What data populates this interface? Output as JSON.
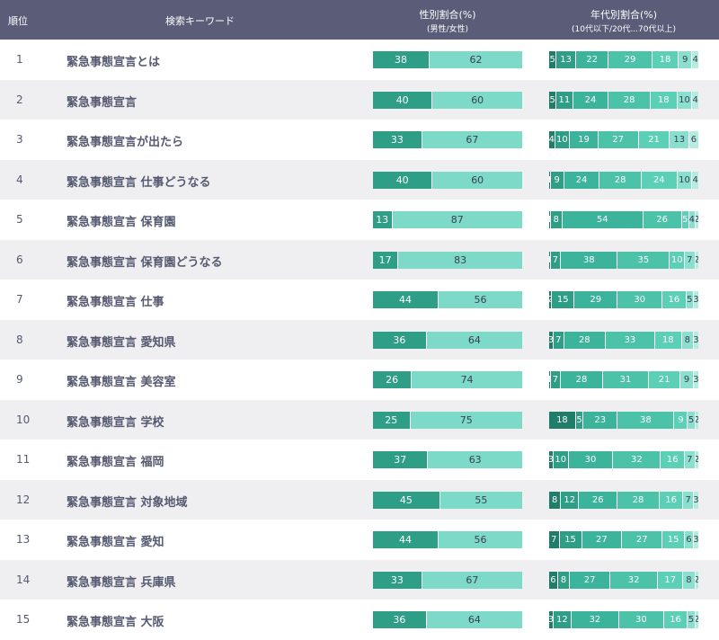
{
  "header": {
    "rank": "順位",
    "keyword": "検索キーワード",
    "gender_title": "性別割合(%)",
    "gender_sub": "(男性/女性)",
    "age_title": "年代別割合(%)",
    "age_sub": "(10代以下/20代...70代以上)"
  },
  "colors": {
    "male": "#2e9e86",
    "female": "#7ddac8",
    "age": [
      "#1f7d6a",
      "#2e9e86",
      "#3cb39b",
      "#4cc2a9",
      "#5ccfb7",
      "#8adfcf",
      "#b5ece1"
    ],
    "label_dark": "#3a4050",
    "label_light": "#ffffff"
  },
  "chart_data": {
    "type": "table",
    "series_names": {
      "gender": [
        "男性",
        "女性"
      ],
      "age": [
        "10代以下",
        "20代",
        "30代",
        "40代",
        "50代",
        "60代",
        "70代以上"
      ]
    },
    "rows": [
      {
        "rank": "1",
        "keyword": "緊急事態宣言とは",
        "gender": [
          38,
          62
        ],
        "age": [
          5,
          13,
          22,
          29,
          18,
          9,
          4
        ]
      },
      {
        "rank": "2",
        "keyword": "緊急事態宣言",
        "gender": [
          40,
          60
        ],
        "age": [
          5,
          11,
          24,
          28,
          18,
          10,
          4
        ]
      },
      {
        "rank": "3",
        "keyword": "緊急事態宣言が出たら",
        "gender": [
          33,
          67
        ],
        "age": [
          4,
          10,
          19,
          27,
          21,
          13,
          6
        ]
      },
      {
        "rank": "4",
        "keyword": "緊急事態宣言 仕事どうなる",
        "gender": [
          40,
          60
        ],
        "age": [
          1,
          9,
          24,
          28,
          24,
          10,
          4
        ]
      },
      {
        "rank": "5",
        "keyword": "緊急事態宣言 保育園",
        "gender": [
          13,
          87
        ],
        "age": [
          1,
          8,
          54,
          26,
          5,
          4,
          2
        ]
      },
      {
        "rank": "6",
        "keyword": "緊急事態宣言 保育園どうなる",
        "gender": [
          17,
          83
        ],
        "age": [
          1,
          7,
          38,
          35,
          10,
          7,
          2
        ]
      },
      {
        "rank": "7",
        "keyword": "緊急事態宣言 仕事",
        "gender": [
          44,
          56
        ],
        "age": [
          2,
          15,
          29,
          30,
          16,
          5,
          3
        ]
      },
      {
        "rank": "8",
        "keyword": "緊急事態宣言 愛知県",
        "gender": [
          36,
          64
        ],
        "age": [
          3,
          7,
          28,
          33,
          18,
          8,
          3
        ]
      },
      {
        "rank": "9",
        "keyword": "緊急事態宣言 美容室",
        "gender": [
          26,
          74
        ],
        "age": [
          1,
          7,
          28,
          31,
          21,
          9,
          3
        ]
      },
      {
        "rank": "10",
        "keyword": "緊急事態宣言 学校",
        "gender": [
          25,
          75
        ],
        "age": [
          18,
          5,
          23,
          38,
          9,
          5,
          2
        ]
      },
      {
        "rank": "11",
        "keyword": "緊急事態宣言 福岡",
        "gender": [
          37,
          63
        ],
        "age": [
          3,
          10,
          30,
          32,
          16,
          7,
          2
        ]
      },
      {
        "rank": "12",
        "keyword": "緊急事態宣言 対象地域",
        "gender": [
          45,
          55
        ],
        "age": [
          8,
          12,
          26,
          28,
          16,
          7,
          3
        ]
      },
      {
        "rank": "13",
        "keyword": "緊急事態宣言 愛知",
        "gender": [
          44,
          56
        ],
        "age": [
          7,
          15,
          27,
          27,
          15,
          6,
          3
        ]
      },
      {
        "rank": "14",
        "keyword": "緊急事態宣言 兵庫県",
        "gender": [
          33,
          67
        ],
        "age": [
          6,
          8,
          27,
          32,
          17,
          8,
          2
        ]
      },
      {
        "rank": "15",
        "keyword": "緊急事態宣言 大阪",
        "gender": [
          36,
          64
        ],
        "age": [
          3,
          12,
          32,
          30,
          16,
          5,
          2
        ]
      }
    ]
  }
}
